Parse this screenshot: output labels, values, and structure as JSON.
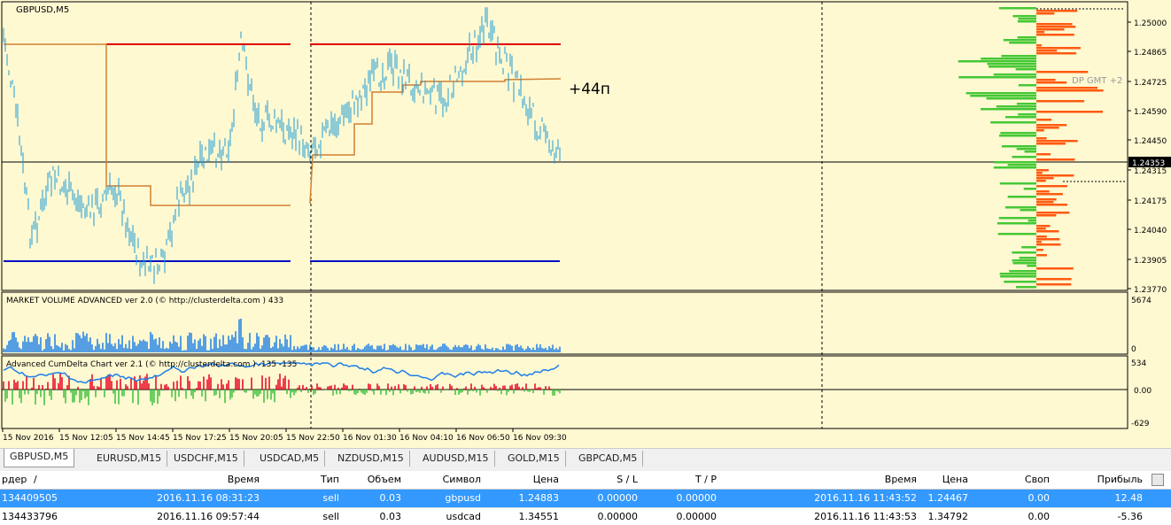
{
  "chart": {
    "symbol": "GBPUSD,M5",
    "annotation": "+44п",
    "dp_label": "DP GMT +2",
    "price_labels": [
      "1.25000",
      "1.24865",
      "1.24725",
      "1.24590",
      "1.24450",
      "1.24315",
      "1.24175",
      "1.24040",
      "1.23905",
      "1.23770"
    ],
    "current_price": "1.24353"
  },
  "volume_panel": {
    "title": "MARKET VOLUME ADVANCED ver 2.0 (© http://clusterdelta.com ) 433",
    "labels": [
      "5674",
      "0"
    ]
  },
  "delta_panel": {
    "title": "Advanced CumDelta Chart ver 2.1 (© http://clusterdelta.com ) -135 -135",
    "labels": [
      "534",
      "0.00",
      "-629"
    ]
  },
  "time_labels": [
    "15 Nov 2016",
    "15 Nov 12:05",
    "15 Nov 14:45",
    "15 Nov 17:25",
    "15 Nov 20:05",
    "15 Nov 22:50",
    "16 Nov 01:30",
    "16 Nov 04:10",
    "16 Nov 06:50",
    "16 Nov 09:30"
  ],
  "tabs": [
    "GBPUSD,M5",
    "EURUSD,M15",
    "USDCHF,M15",
    "USDCAD,M5",
    "NZDUSD,M15",
    "AUDUSD,M15",
    "GOLD,M15",
    "GBPCAD,M5"
  ],
  "table": {
    "columns": [
      "рдер",
      "Время",
      "Тип",
      "Объем",
      "Символ",
      "Цена",
      "S / L",
      "T / P",
      "Время",
      "Цена",
      "Своп",
      "Прибыль"
    ],
    "sort_mark": "/",
    "rows": [
      [
        "134409505",
        "2016.11.16 08:31:23",
        "sell",
        "0.03",
        "gbpusd",
        "1.24883",
        "0.00000",
        "0.00000",
        "2016.11.16 11:43:52",
        "1.24467",
        "0.00",
        "12.48"
      ],
      [
        "134433796",
        "2016.11.16 09:57:44",
        "sell",
        "0.03",
        "usdcad",
        "1.34551",
        "0.00000",
        "0.00000",
        "2016.11.16 11:43:53",
        "1.34792",
        "0.00",
        "-5.36"
      ]
    ]
  }
}
